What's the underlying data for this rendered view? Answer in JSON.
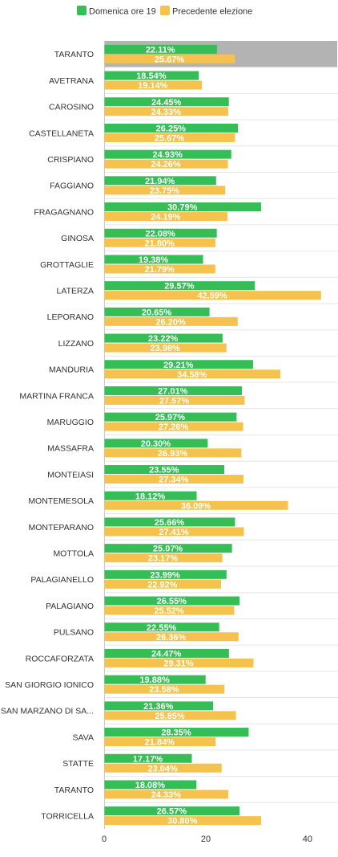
{
  "chart_data": {
    "type": "bar",
    "orientation": "horizontal",
    "categories": [
      "TARANTO",
      "AVETRANA",
      "CAROSINO",
      "CASTELLANETA",
      "CRISPIANO",
      "FAGGIANO",
      "FRAGAGNANO",
      "GINOSA",
      "GROTTAGLIE",
      "LATERZA",
      "LEPORANO",
      "LIZZANO",
      "MANDURIA",
      "MARTINA FRANCA",
      "MARUGGIO",
      "MASSAFRA",
      "MONTEIASI",
      "MONTEMESOLA",
      "MONTEPARANO",
      "MOTTOLA",
      "PALAGIANELLO",
      "PALAGIANO",
      "PULSANO",
      "ROCCAFORZATA",
      "SAN GIORGIO IONICO",
      "SAN MARZANO DI SA...",
      "SAVA",
      "STATTE",
      "TARANTO",
      "TORRICELLA"
    ],
    "series": [
      {
        "name": "Domenica ore 19",
        "color": "#35bd56",
        "values": [
          22.11,
          18.54,
          24.45,
          26.25,
          24.93,
          21.94,
          30.79,
          22.08,
          19.38,
          29.57,
          20.65,
          23.22,
          29.21,
          27.01,
          25.97,
          20.3,
          23.55,
          18.12,
          25.66,
          25.07,
          23.99,
          26.55,
          22.55,
          24.47,
          19.88,
          21.36,
          28.35,
          17.17,
          18.08,
          26.57
        ],
        "labels": [
          "22.11%",
          "18.54%",
          "24.45%",
          "26.25%",
          "24.93%",
          "21.94%",
          "30.79%",
          "22.08%",
          "19.38%",
          "29.57%",
          "20.65%",
          "23.22%",
          "29.21%",
          "27.01%",
          "25.97%",
          "20.30%",
          "23.55%",
          "18.12%",
          "25.66%",
          "25.07%",
          "23.99%",
          "26.55%",
          "22.55%",
          "24.47%",
          "19.88%",
          "21.36%",
          "28.35%",
          "17.17%",
          "18.08%",
          "26.57%"
        ]
      },
      {
        "name": "Precedente elezione",
        "color": "#f5c34d",
        "values": [
          25.67,
          19.14,
          24.33,
          25.67,
          24.26,
          23.75,
          24.19,
          21.8,
          21.79,
          42.59,
          26.2,
          23.98,
          34.58,
          27.57,
          27.26,
          26.93,
          27.34,
          36.09,
          27.41,
          23.17,
          22.92,
          25.52,
          26.36,
          29.31,
          23.58,
          25.85,
          21.84,
          23.04,
          24.33,
          30.8
        ],
        "labels": [
          "25.67%",
          "19.14%",
          "24.33%",
          "25.67%",
          "24.26%",
          "23.75%",
          "24.19%",
          "21.80%",
          "21.79%",
          "42.59%",
          "26.20%",
          "23.98%",
          "34.58%",
          "27.57%",
          "27.26%",
          "26.93%",
          "27.34%",
          "36.09%",
          "27.41%",
          "23.17%",
          "22.92%",
          "25.52%",
          "26.36%",
          "29.31%",
          "23.58%",
          "25.85%",
          "21.84%",
          "23.04%",
          "24.33%",
          "30.80%"
        ]
      }
    ],
    "xlim": [
      0,
      46
    ],
    "ticks": [
      0,
      20,
      40
    ],
    "tick_labels": [
      "0",
      "20",
      "40"
    ],
    "highlighted_index": 0,
    "highlight_color": "#b3b3b3",
    "legend_position": "top-left",
    "grid": true
  }
}
